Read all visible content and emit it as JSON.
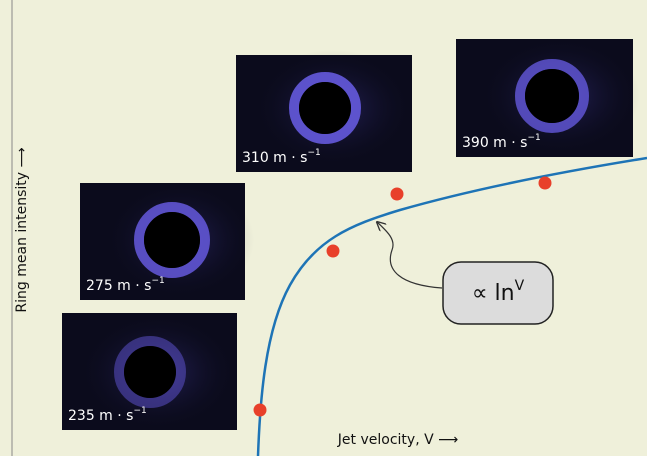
{
  "axes": {
    "y_label": "Ring mean intensity ⟶",
    "x_label": "Jet velocity, V ⟶"
  },
  "insets": [
    {
      "text": "235 m · s",
      "sup": "−1"
    },
    {
      "text": "275 m · s",
      "sup": "−1"
    },
    {
      "text": "310 m · s",
      "sup": "−1"
    },
    {
      "text": "390 m · s",
      "sup": "−1"
    }
  ],
  "annotation": {
    "text": "∝ ln",
    "sup": "V"
  }
}
